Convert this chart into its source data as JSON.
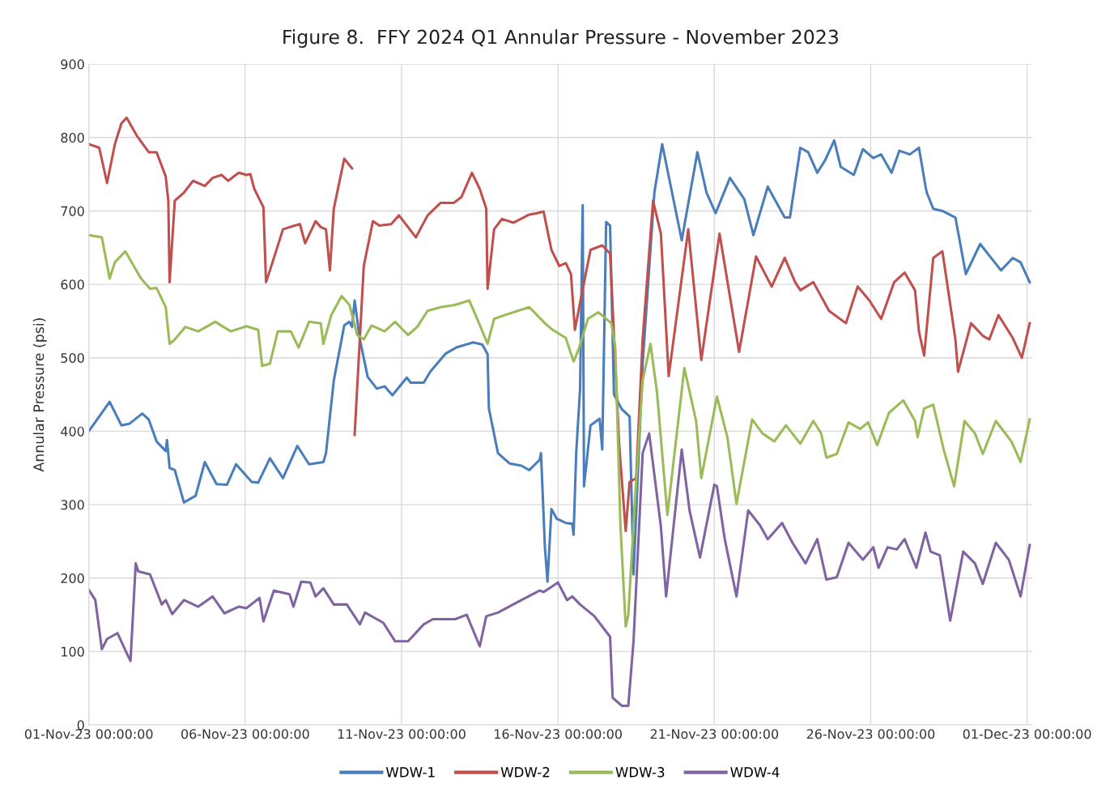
{
  "chart_data": {
    "type": "line",
    "title": "Figure 8.  FFY 2024 Q1 Annular Pressure - November 2023",
    "ylabel": "Annular Pressure (psi)",
    "xlim": [
      "2023-11-01T00:00",
      "2023-12-01T04:00"
    ],
    "xticks": [
      {
        "value": "2023-11-01T00:00",
        "label": "01-Nov-23 00:00:00"
      },
      {
        "value": "2023-11-06T00:00",
        "label": "06-Nov-23 00:00:00"
      },
      {
        "value": "2023-11-11T00:00",
        "label": "11-Nov-23 00:00:00"
      },
      {
        "value": "2023-11-16T00:00",
        "label": "16-Nov-23 00:00:00"
      },
      {
        "value": "2023-11-21T00:00",
        "label": "21-Nov-23 00:00:00"
      },
      {
        "value": "2023-11-26T00:00",
        "label": "26-Nov-23 00:00:00"
      },
      {
        "value": "2023-12-01T00:00",
        "label": "01-Dec-23 00:00:00"
      }
    ],
    "ylim": [
      0,
      900
    ],
    "yticks": [
      0,
      100,
      200,
      300,
      400,
      500,
      600,
      700,
      800,
      900
    ],
    "grid": true,
    "legend": "bottom",
    "series": [
      {
        "name": "WDW-1",
        "color": "#4a7ebb",
        "x": [
          "2023-11-01T00:00",
          "2023-11-01T16:00",
          "2023-11-02T01:00",
          "2023-11-02T07:00",
          "2023-11-02T17:00",
          "2023-11-02T22:00",
          "2023-11-03T04:00",
          "2023-11-03T11:00",
          "2023-11-03T12:00",
          "2023-11-03T14:00",
          "2023-11-03T18:00",
          "2023-11-04T01:00",
          "2023-11-04T10:00",
          "2023-11-04T17:00",
          "2023-11-05T02:00",
          "2023-11-05T10:00",
          "2023-11-05T17:00",
          "2023-11-06T05:00",
          "2023-11-06T10:00",
          "2023-11-06T19:00",
          "2023-11-07T05:00",
          "2023-11-07T16:00",
          "2023-11-08T01:00",
          "2023-11-08T12:00",
          "2023-11-08T14:00",
          "2023-11-08T20:00",
          "2023-11-09T04:00",
          "2023-11-09T08:00",
          "2023-11-09T10:00",
          "2023-11-09T12:00",
          "2023-11-09T16:00",
          "2023-11-09T22:00",
          "2023-11-10T05:00",
          "2023-11-10T11:00",
          "2023-11-10T17:00",
          "2023-11-11T04:00",
          "2023-11-11T07:00",
          "2023-11-11T17:00",
          "2023-11-11T22:00",
          "2023-11-12T10:00",
          "2023-11-12T18:00",
          "2023-11-13T07:00",
          "2023-11-13T14:00",
          "2023-11-13T18:00",
          "2023-11-13T19:00",
          "2023-11-14T02:00",
          "2023-11-14T11:00",
          "2023-11-14T20:00",
          "2023-11-15T02:00",
          "2023-11-15T10:00",
          "2023-11-15T11:00",
          "2023-11-15T14:00",
          "2023-11-15T16:00",
          "2023-11-15T19:00",
          "2023-11-15T23:00",
          "2023-11-16T06:00",
          "2023-11-16T11:00",
          "2023-11-16T12:00",
          "2023-11-16T14:00",
          "2023-11-16T17:00",
          "2023-11-16T19:00",
          "2023-11-16T20:00",
          "2023-11-17T01:00",
          "2023-11-17T08:00",
          "2023-11-17T10:00",
          "2023-11-17T13:00",
          "2023-11-17T16:00",
          "2023-11-17T19:00",
          "2023-11-18T01:00",
          "2023-11-18T07:00",
          "2023-11-18T10:00",
          "2023-11-18T17:00",
          "2023-11-19T02:00",
          "2023-11-19T08:00",
          "2023-11-19T23:00",
          "2023-11-20T11:00",
          "2023-11-20T18:00",
          "2023-11-21T01:00",
          "2023-11-21T12:00",
          "2023-11-21T23:00",
          "2023-11-22T06:00",
          "2023-11-22T17:00",
          "2023-11-23T06:00",
          "2023-11-23T10:00",
          "2023-11-23T18:00",
          "2023-11-24T00:00",
          "2023-11-24T07:00",
          "2023-11-24T13:00",
          "2023-11-24T20:00",
          "2023-11-25T01:00",
          "2023-11-25T11:00",
          "2023-11-25T18:00",
          "2023-11-26T02:00",
          "2023-11-26T08:00",
          "2023-11-26T16:00",
          "2023-11-26T22:00",
          "2023-11-27T06:00",
          "2023-11-27T13:00",
          "2023-11-27T18:00",
          "2023-11-27T19:00",
          "2023-11-28T00:00",
          "2023-11-28T07:00",
          "2023-11-28T17:00",
          "2023-11-29T01:00",
          "2023-11-29T12:00",
          "2023-11-30T04:00",
          "2023-11-30T13:00",
          "2023-11-30T19:00",
          "2023-12-01T02:00"
        ],
        "values": [
          400,
          440,
          408,
          410,
          424,
          416,
          386,
          373,
          388,
          350,
          347,
          303,
          312,
          358,
          328,
          327,
          355,
          331,
          330,
          363,
          336,
          380,
          355,
          358,
          370,
          469,
          544,
          549,
          542,
          578,
          525,
          474,
          458,
          461,
          449,
          473,
          466,
          466,
          481,
          506,
          514,
          521,
          518,
          505,
          431,
          370,
          356,
          353,
          347,
          361,
          370,
          242,
          195,
          294,
          281,
          275,
          274,
          259,
          370,
          458,
          708,
          325,
          408,
          417,
          375,
          685,
          680,
          450,
          430,
          420,
          205,
          492,
          725,
          791,
          660,
          780,
          725,
          697,
          745,
          716,
          667,
          733,
          691,
          691,
          786,
          780,
          752,
          769,
          796,
          760,
          749,
          784,
          772,
          777,
          752,
          782,
          777,
          786,
          734,
          725,
          703,
          700,
          691,
          614,
          655,
          619,
          636,
          630,
          603
        ]
      },
      {
        "name": "WDW-2",
        "color": "#c0504d",
        "x": [
          "2023-11-01T00:00",
          "2023-11-01T08:00",
          "2023-11-01T14:00",
          "2023-11-01T20:00",
          "2023-11-02T01:00",
          "2023-11-02T05:00",
          "2023-11-02T13:00",
          "2023-11-02T22:00",
          "2023-11-03T04:00",
          "2023-11-03T11:00",
          "2023-11-03T13:00",
          "2023-11-03T14:00",
          "2023-11-03T18:00",
          "2023-11-04T01:00",
          "2023-11-04T08:00",
          "2023-11-04T17:00",
          "2023-11-04T23:00",
          "2023-11-05T06:00",
          "2023-11-05T11:00",
          "2023-11-05T19:00",
          "2023-11-06T01:00",
          "2023-11-06T04:00",
          "2023-11-06T07:00",
          "2023-11-06T14:00",
          "2023-11-06T16:00",
          "2023-11-06T19:00",
          "2023-11-07T05:00",
          "2023-11-07T14:00",
          "2023-11-07T18:00",
          "2023-11-07T22:00",
          "2023-11-08T06:00",
          "2023-11-08T10:00",
          "2023-11-08T14:00",
          "2023-11-08T17:00",
          "2023-11-08T20:00",
          "2023-11-09T04:00",
          "2023-11-09T10:00",
          "2023-11-09T11:00",
          "2023-11-09T12:00",
          "2023-11-09T19:00",
          "2023-11-10T02:00",
          "2023-11-10T07:00",
          "2023-11-10T16:00",
          "2023-11-10T22:00",
          "2023-11-11T11:00",
          "2023-11-11T20:00",
          "2023-11-12T06:00",
          "2023-11-12T16:00",
          "2023-11-12T22:00",
          "2023-11-13T06:00",
          "2023-11-13T12:00",
          "2023-11-13T17:00",
          "2023-11-13T18:00",
          "2023-11-13T23:00",
          "2023-11-14T05:00",
          "2023-11-14T14:00",
          "2023-11-15T02:00",
          "2023-11-15T08:00",
          "2023-11-15T13:00",
          "2023-11-15T19:00",
          "2023-11-16T01:00",
          "2023-11-16T06:00",
          "2023-11-16T10:00",
          "2023-11-16T13:00",
          "2023-11-16T17:00",
          "2023-11-17T01:00",
          "2023-11-17T10:00",
          "2023-11-17T16:00",
          "2023-11-17T23:00",
          "2023-11-18T04:00",
          "2023-11-18T07:00",
          "2023-11-18T12:00",
          "2023-11-18T17:00",
          "2023-11-19T01:00",
          "2023-11-19T07:00",
          "2023-11-19T13:00",
          "2023-11-20T04:00",
          "2023-11-20T14:00",
          "2023-11-21T04:00",
          "2023-11-21T19:00",
          "2023-11-22T08:00",
          "2023-11-22T20:00",
          "2023-11-23T06:00",
          "2023-11-23T14:00",
          "2023-11-23T18:00",
          "2023-11-24T04:00",
          "2023-11-24T16:00",
          "2023-11-25T05:00",
          "2023-11-25T14:00",
          "2023-11-25T23:00",
          "2023-11-26T08:00",
          "2023-11-26T18:00",
          "2023-11-27T02:00",
          "2023-11-27T10:00",
          "2023-11-27T13:00",
          "2023-11-27T17:00",
          "2023-11-28T00:00",
          "2023-11-28T07:00",
          "2023-11-28T17:00",
          "2023-11-28T19:00",
          "2023-11-29T05:00",
          "2023-11-29T14:00",
          "2023-11-29T19:00",
          "2023-11-30T02:00",
          "2023-11-30T13:00",
          "2023-11-30T20:00",
          "2023-12-01T02:00"
        ],
        "values": [
          791,
          786,
          738,
          791,
          819,
          827,
          802,
          780,
          780,
          747,
          714,
          603,
          714,
          725,
          741,
          734,
          745,
          749,
          741,
          752,
          749,
          750,
          730,
          705,
          603,
          619,
          675,
          680,
          682,
          656,
          686,
          678,
          675,
          619,
          703,
          771,
          758,
          null,
          395,
          625,
          686,
          680,
          682,
          694,
          664,
          694,
          711,
          711,
          719,
          752,
          730,
          703,
          594,
          675,
          689,
          684,
          695,
          697,
          699,
          647,
          625,
          629,
          614,
          538,
          575,
          647,
          653,
          642,
          381,
          264,
          331,
          336,
          525,
          714,
          669,
          475,
          675,
          497,
          669,
          508,
          638,
          597,
          636,
          603,
          592,
          603,
          564,
          547,
          597,
          578,
          553,
          603,
          616,
          592,
          536,
          503,
          636,
          645,
          525,
          481,
          547,
          530,
          525,
          558,
          527,
          500,
          547
        ]
      },
      {
        "name": "WDW-3",
        "color": "#9bbb59",
        "x": [
          "2023-11-01T00:00",
          "2023-11-01T10:00",
          "2023-11-01T16:00",
          "2023-11-01T20:00",
          "2023-11-02T04:00",
          "2023-11-02T16:00",
          "2023-11-02T23:00",
          "2023-11-03T04:00",
          "2023-11-03T11:00",
          "2023-11-03T14:00",
          "2023-11-03T18:00",
          "2023-11-04T02:00",
          "2023-11-04T12:00",
          "2023-11-05T01:00",
          "2023-11-05T13:00",
          "2023-11-06T01:00",
          "2023-11-06T10:00",
          "2023-11-06T13:00",
          "2023-11-06T19:00",
          "2023-11-07T01:00",
          "2023-11-07T11:00",
          "2023-11-07T17:00",
          "2023-11-08T01:00",
          "2023-11-08T10:00",
          "2023-11-08T12:00",
          "2023-11-08T18:00",
          "2023-11-09T02:00",
          "2023-11-09T08:00",
          "2023-11-09T14:00",
          "2023-11-09T19:00",
          "2023-11-10T01:00",
          "2023-11-10T11:00",
          "2023-11-10T19:00",
          "2023-11-11T05:00",
          "2023-11-11T12:00",
          "2023-11-11T20:00",
          "2023-11-12T06:00",
          "2023-11-12T17:00",
          "2023-11-13T04:00",
          "2023-11-13T10:00",
          "2023-11-13T18:00",
          "2023-11-13T23:00",
          "2023-11-14T07:00",
          "2023-11-15T02:00",
          "2023-11-15T14:00",
          "2023-11-15T20:00",
          "2023-11-16T06:00",
          "2023-11-16T12:00",
          "2023-11-16T16:00",
          "2023-11-16T23:00",
          "2023-11-17T07:00",
          "2023-11-17T17:00",
          "2023-11-17T20:00",
          "2023-11-18T00:00",
          "2023-11-18T04:00",
          "2023-11-18T06:00",
          "2023-11-18T11:00",
          "2023-11-18T17:00",
          "2023-11-18T23:00",
          "2023-11-19T04:00",
          "2023-11-19T12:00",
          "2023-11-20T01:00",
          "2023-11-20T10:00",
          "2023-11-20T14:00",
          "2023-11-21T02:00",
          "2023-11-21T10:00",
          "2023-11-21T17:00",
          "2023-11-22T05:00",
          "2023-11-22T13:00",
          "2023-11-22T22:00",
          "2023-11-23T07:00",
          "2023-11-23T18:00",
          "2023-11-24T04:00",
          "2023-11-24T10:00",
          "2023-11-24T14:00",
          "2023-11-24T22:00",
          "2023-11-25T07:00",
          "2023-11-25T16:00",
          "2023-11-25T22:00",
          "2023-11-26T05:00",
          "2023-11-26T14:00",
          "2023-11-27T01:00",
          "2023-11-27T10:00",
          "2023-11-27T12:00",
          "2023-11-27T17:00",
          "2023-11-28T00:00",
          "2023-11-28T08:00",
          "2023-11-28T16:00",
          "2023-11-29T00:00",
          "2023-11-29T08:00",
          "2023-11-29T14:00",
          "2023-11-30T00:00",
          "2023-11-30T12:00",
          "2023-11-30T19:00",
          "2023-12-01T02:00"
        ],
        "values": [
          667,
          664,
          608,
          630,
          645,
          608,
          594,
          595,
          569,
          519,
          525,
          542,
          536,
          549,
          536,
          543,
          538,
          489,
          492,
          536,
          536,
          514,
          549,
          547,
          519,
          558,
          584,
          572,
          531,
          525,
          544,
          536,
          549,
          531,
          542,
          564,
          569,
          572,
          578,
          553,
          519,
          553,
          558,
          569,
          547,
          538,
          527,
          495,
          512,
          553,
          562,
          547,
          514,
          270,
          134,
          150,
          303,
          469,
          519,
          453,
          286,
          486,
          414,
          336,
          447,
          392,
          301,
          416,
          397,
          386,
          408,
          383,
          414,
          397,
          364,
          369,
          412,
          403,
          412,
          381,
          425,
          442,
          414,
          392,
          431,
          436,
          375,
          325,
          414,
          397,
          369,
          414,
          386,
          358,
          416
        ]
      },
      {
        "name": "WDW-4",
        "color": "#8064a2",
        "x": [
          "2023-11-01T00:00",
          "2023-11-01T05:00",
          "2023-11-01T10:00",
          "2023-11-01T14:00",
          "2023-11-01T22:00",
          "2023-11-02T05:00",
          "2023-11-02T08:00",
          "2023-11-02T12:00",
          "2023-11-02T14:00",
          "2023-11-02T23:00",
          "2023-11-03T08:00",
          "2023-11-03T11:00",
          "2023-11-03T16:00",
          "2023-11-04T01:00",
          "2023-11-04T12:00",
          "2023-11-04T23:00",
          "2023-11-05T08:00",
          "2023-11-05T19:00",
          "2023-11-06T01:00",
          "2023-11-06T11:00",
          "2023-11-06T14:00",
          "2023-11-06T22:00",
          "2023-11-07T10:00",
          "2023-11-07T13:00",
          "2023-11-07T19:00",
          "2023-11-08T02:00",
          "2023-11-08T06:00",
          "2023-11-08T12:00",
          "2023-11-08T20:00",
          "2023-11-09T06:00",
          "2023-11-09T16:00",
          "2023-11-09T20:00",
          "2023-11-10T10:00",
          "2023-11-10T19:00",
          "2023-11-11T05:00",
          "2023-11-11T17:00",
          "2023-11-12T00:00",
          "2023-11-12T17:00",
          "2023-11-13T02:00",
          "2023-11-13T12:00",
          "2023-11-13T17:00",
          "2023-11-14T02:00",
          "2023-11-14T20:00",
          "2023-11-15T10:00",
          "2023-11-15T13:00",
          "2023-11-16T00:00",
          "2023-11-16T07:00",
          "2023-11-16T11:00",
          "2023-11-16T17:00",
          "2023-11-17T04:00",
          "2023-11-17T16:00",
          "2023-11-17T18:00",
          "2023-11-18T01:00",
          "2023-11-18T06:00",
          "2023-11-18T10:00",
          "2023-11-18T17:00",
          "2023-11-18T22:00",
          "2023-11-19T07:00",
          "2023-11-19T11:00",
          "2023-11-19T23:00",
          "2023-11-20T05:00",
          "2023-11-20T13:00",
          "2023-11-21T00:00",
          "2023-11-21T02:00",
          "2023-11-21T08:00",
          "2023-11-21T17:00",
          "2023-11-22T02:00",
          "2023-11-22T11:00",
          "2023-11-22T17:00",
          "2023-11-23T04:00",
          "2023-11-23T12:00",
          "2023-11-23T22:00",
          "2023-11-24T07:00",
          "2023-11-24T14:00",
          "2023-11-24T22:00",
          "2023-11-25T07:00",
          "2023-11-25T18:00",
          "2023-11-26T02:00",
          "2023-11-26T06:00",
          "2023-11-26T13:00",
          "2023-11-26T20:00",
          "2023-11-27T02:00",
          "2023-11-27T11:00",
          "2023-11-27T18:00",
          "2023-11-27T22:00",
          "2023-11-28T05:00",
          "2023-11-28T13:00",
          "2023-11-28T23:00",
          "2023-11-29T08:00",
          "2023-11-29T14:00",
          "2023-11-30T00:00",
          "2023-11-30T10:00",
          "2023-11-30T19:00",
          "2023-12-01T02:00"
        ],
        "values": [
          184,
          170,
          103,
          117,
          125,
          98,
          87,
          220,
          209,
          205,
          164,
          170,
          151,
          170,
          161,
          175,
          152,
          161,
          159,
          173,
          141,
          183,
          178,
          161,
          195,
          194,
          175,
          186,
          164,
          164,
          137,
          153,
          139,
          114,
          114,
          137,
          144,
          144,
          150,
          107,
          148,
          153,
          170,
          183,
          181,
          194,
          170,
          175,
          164,
          148,
          120,
          37,
          26,
          26,
          114,
          370,
          397,
          270,
          175,
          375,
          292,
          228,
          327,
          325,
          253,
          175,
          292,
          272,
          253,
          275,
          248,
          220,
          253,
          198,
          201,
          248,
          225,
          242,
          214,
          242,
          239,
          253,
          214,
          262,
          236,
          231,
          142,
          236,
          220,
          192,
          248,
          225,
          175,
          245
        ]
      }
    ]
  }
}
